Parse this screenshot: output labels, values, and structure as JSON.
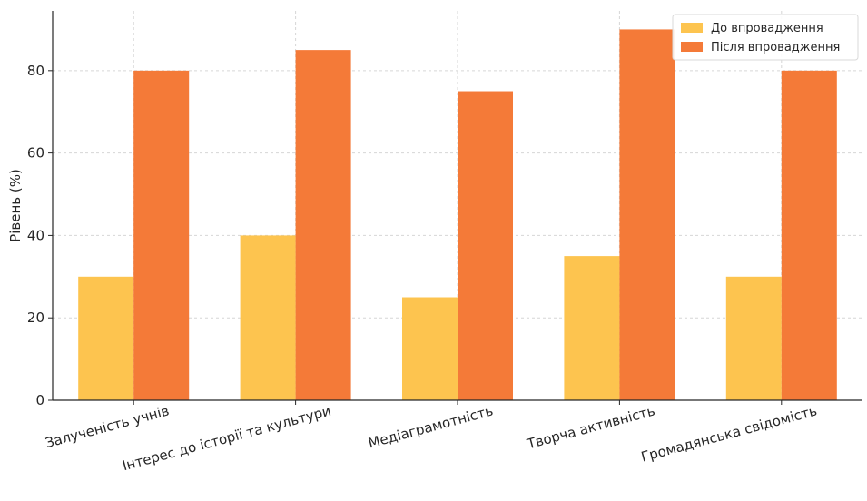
{
  "chart_data": {
    "type": "bar",
    "title": "",
    "xlabel": "",
    "ylabel": "Рівень (%)",
    "categories": [
      "Залученість учнів",
      "Інтерес до історії та культури",
      "Медіаграмотність",
      "Творча активність",
      "Громадянська свідомість"
    ],
    "series": [
      {
        "name": "До впровадження",
        "values": [
          30,
          40,
          25,
          35,
          30
        ],
        "color": "#FDC44F"
      },
      {
        "name": "Після впровадження",
        "values": [
          80,
          85,
          75,
          90,
          80
        ],
        "color": "#F47A38"
      }
    ],
    "ylim": [
      0,
      94.5
    ],
    "yticks": [
      0,
      20,
      40,
      60,
      80
    ],
    "grid": true,
    "legend": "top-right"
  }
}
